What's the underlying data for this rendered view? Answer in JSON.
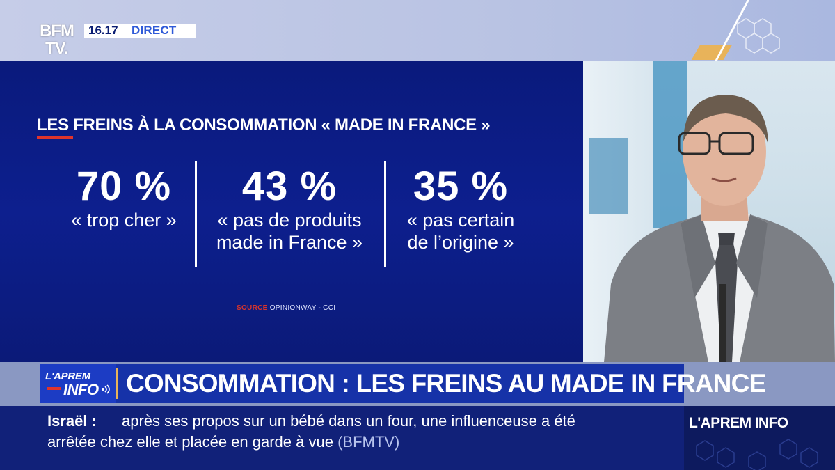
{
  "channel": {
    "logo_line1": "BFM",
    "logo_line2": "TV.",
    "time": "16.17",
    "live_label": "DIRECT"
  },
  "infographic": {
    "title": "LES FREINS À LA CONSOMMATION « MADE IN FRANCE »",
    "stats": [
      {
        "value": "70 %",
        "label_lines": [
          "« trop cher »"
        ]
      },
      {
        "value": "43 %",
        "label_lines": [
          "« pas de produits",
          "made in France »"
        ]
      },
      {
        "value": "35 %",
        "label_lines": [
          "« pas certain",
          "de l’origine »"
        ]
      }
    ],
    "source_label": "SOURCE",
    "source_value": "OPINIONWAY - CCI"
  },
  "banner": {
    "show_logo_line1": "L'APREM",
    "show_logo_line2": "INFO",
    "headline": "CONSOMMATION : LES FREINS AU MADE IN FRANCE"
  },
  "ticker": {
    "topic": "Israël :",
    "line1": "après ses propos sur un bébé dans un four, une influenceuse a été",
    "line2": "arrêtée chez elle et placée en garde à vue",
    "source": "(BFMTV)",
    "brand": "L'APREM INFO"
  },
  "colors": {
    "panel_blue": "#0d1f8e",
    "banner_blue": "#1632a8",
    "accent_red": "#e0342c",
    "accent_gold": "#e8b35a"
  }
}
